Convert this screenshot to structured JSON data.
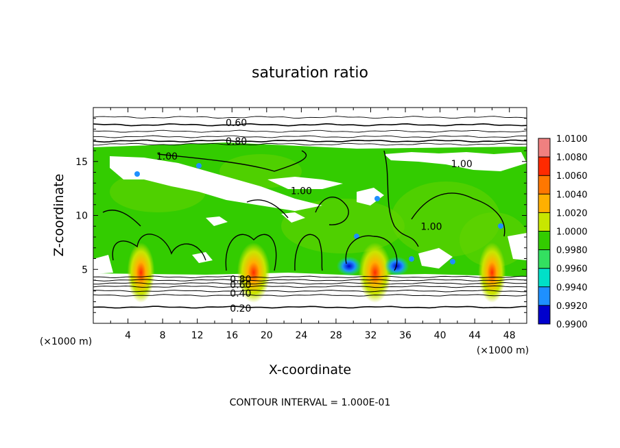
{
  "chart_data": {
    "type": "heatmap",
    "title": "saturation ratio",
    "xlabel": "X-coordinate",
    "ylabel": "Z-coordinate",
    "x_unit": "(×1000 m)",
    "y_unit": "(×1000 m)",
    "xlim": [
      0,
      50
    ],
    "ylim": [
      0,
      20
    ],
    "x_ticks": [
      4,
      8,
      12,
      16,
      20,
      24,
      28,
      32,
      36,
      40,
      44,
      48
    ],
    "y_ticks": [
      5,
      10,
      15
    ],
    "colorbar": {
      "min": 0.99,
      "max": 1.01,
      "labels": [
        "1.0100",
        "1.0080",
        "1.0060",
        "1.0040",
        "1.0020",
        "1.0000",
        "0.9980",
        "0.9960",
        "0.9940",
        "0.9920",
        "0.9900"
      ],
      "colors": [
        "#f08080",
        "#ff2a00",
        "#ff7700",
        "#ffb000",
        "#c8e600",
        "#33cc00",
        "#33e060",
        "#00e0c8",
        "#1e90ff",
        "#0000cd",
        "#5a0096"
      ]
    },
    "contour_interval": 0.1,
    "contour_labels": [
      {
        "text": "0.60",
        "x": 16.5,
        "y": 18.6
      },
      {
        "text": "0.80",
        "x": 16.5,
        "y": 16.9
      },
      {
        "text": "1.00",
        "x": 8.5,
        "y": 15.5
      },
      {
        "text": "1.00",
        "x": 24.0,
        "y": 12.3
      },
      {
        "text": "1.00",
        "x": 42.5,
        "y": 14.8
      },
      {
        "text": "1.00",
        "x": 39.0,
        "y": 9.0
      },
      {
        "text": "0.80",
        "x": 17.0,
        "y": 4.1
      },
      {
        "text": "0.60",
        "x": 17.0,
        "y": 3.6
      },
      {
        "text": "0.40",
        "x": 17.0,
        "y": 2.8
      },
      {
        "text": "0.20",
        "x": 17.0,
        "y": 1.4
      }
    ],
    "surface_maxima": [
      {
        "x": 5.5,
        "level": 1.006
      },
      {
        "x": 18.5,
        "level": 1.008
      },
      {
        "x": 32.5,
        "level": 1.008
      },
      {
        "x": 46.0,
        "level": 1.004
      }
    ],
    "surface_minima": [
      {
        "x": 29.5,
        "level": 0.993
      },
      {
        "x": 35.0,
        "level": 0.994
      }
    ]
  },
  "footer": {
    "contour_interval_text": "CONTOUR INTERVAL = 1.000E-01"
  }
}
